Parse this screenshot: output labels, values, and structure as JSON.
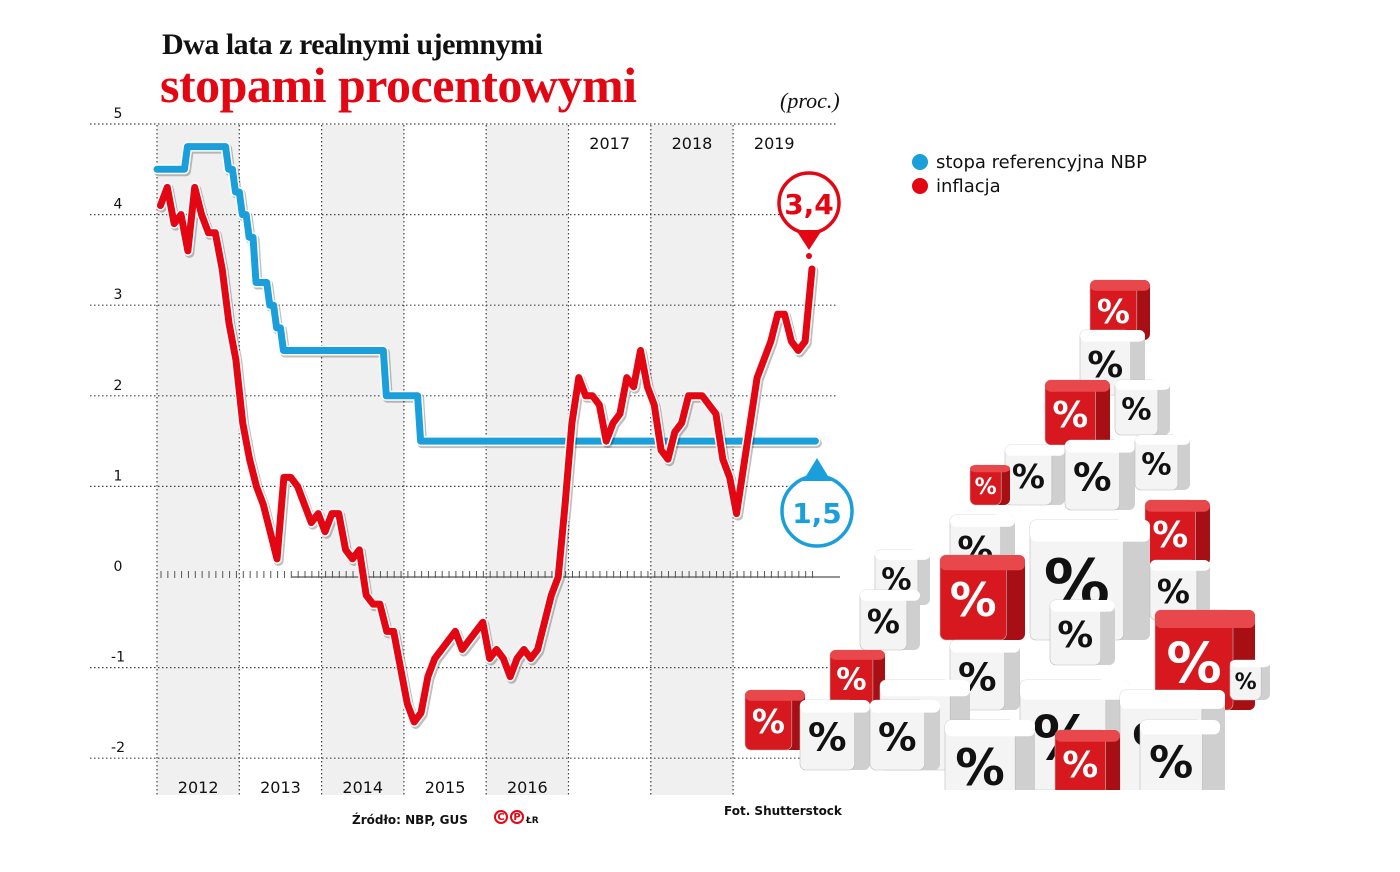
{
  "header": {
    "title_line1": "Dwa lata z realnymi ujemnymi",
    "title_line2": "stopami procentowymi",
    "unit": "(proc.)"
  },
  "legend": {
    "items": [
      {
        "label": "stopa referencyjna NBP",
        "color": "#1a9fdb"
      },
      {
        "label": "inflacja",
        "color": "#e30613"
      }
    ]
  },
  "callouts": {
    "inflation_last": "3,4",
    "rate_last": "1,5"
  },
  "footer": {
    "source": "Źródło: NBP, GUS",
    "logo": "CP",
    "author": "ŁR",
    "photo_credit": "Fot. Shutterstock"
  },
  "colors": {
    "red": "#e30613",
    "blue": "#1a9fdb",
    "shade": "#f0f0f0"
  },
  "chart_data": {
    "type": "line",
    "title": "Dwa lata z realnymi ujemnymi stopami procentowymi",
    "ylabel": "(proc.)",
    "xlabel": "",
    "ylim": [
      -2,
      5
    ],
    "yticks": [
      5,
      4,
      3,
      2,
      1,
      0,
      -1,
      -2
    ],
    "x_categories": [
      "2012",
      "2013",
      "2014",
      "2015",
      "2016",
      "2017",
      "2018",
      "2019"
    ],
    "x_label_positions": {
      "bottom": [
        "2012",
        "2013",
        "2014",
        "2015",
        "2016"
      ],
      "top": [
        "2017",
        "2018",
        "2019"
      ]
    },
    "frequency": "monthly, Jan 2012 - Dec 2019",
    "grid": true,
    "legend_position": "right",
    "annotations": [
      {
        "series": "inflacja",
        "text": "3,4",
        "at": "last point"
      },
      {
        "series": "stopa referencyjna NBP",
        "text": "1,5",
        "at": "last point"
      }
    ],
    "series": [
      {
        "name": "stopa referencyjna NBP",
        "color": "#1a9fdb",
        "values": [
          4.5,
          4.5,
          4.5,
          4.5,
          4.75,
          4.75,
          4.75,
          4.75,
          4.75,
          4.75,
          4.5,
          4.25,
          4.0,
          3.75,
          3.25,
          3.25,
          3.0,
          2.75,
          2.5,
          2.5,
          2.5,
          2.5,
          2.5,
          2.5,
          2.5,
          2.5,
          2.5,
          2.5,
          2.5,
          2.5,
          2.5,
          2.5,
          2.5,
          2.0,
          2.0,
          2.0,
          2.0,
          2.0,
          1.5,
          1.5,
          1.5,
          1.5,
          1.5,
          1.5,
          1.5,
          1.5,
          1.5,
          1.5,
          1.5,
          1.5,
          1.5,
          1.5,
          1.5,
          1.5,
          1.5,
          1.5,
          1.5,
          1.5,
          1.5,
          1.5,
          1.5,
          1.5,
          1.5,
          1.5,
          1.5,
          1.5,
          1.5,
          1.5,
          1.5,
          1.5,
          1.5,
          1.5,
          1.5,
          1.5,
          1.5,
          1.5,
          1.5,
          1.5,
          1.5,
          1.5,
          1.5,
          1.5,
          1.5,
          1.5,
          1.5,
          1.5,
          1.5,
          1.5,
          1.5,
          1.5,
          1.5,
          1.5,
          1.5,
          1.5,
          1.5,
          1.5
        ]
      },
      {
        "name": "inflacja",
        "color": "#e30613",
        "values": [
          4.1,
          4.3,
          3.9,
          4.0,
          3.6,
          4.3,
          4.0,
          3.8,
          3.8,
          3.4,
          2.8,
          2.4,
          1.7,
          1.3,
          1.0,
          0.8,
          0.5,
          0.2,
          1.1,
          1.1,
          1.0,
          0.8,
          0.6,
          0.7,
          0.5,
          0.7,
          0.7,
          0.3,
          0.2,
          0.3,
          -0.2,
          -0.3,
          -0.3,
          -0.6,
          -0.6,
          -1.0,
          -1.4,
          -1.6,
          -1.5,
          -1.1,
          -0.9,
          -0.8,
          -0.7,
          -0.6,
          -0.8,
          -0.7,
          -0.6,
          -0.5,
          -0.9,
          -0.8,
          -0.9,
          -1.1,
          -0.9,
          -0.8,
          -0.9,
          -0.8,
          -0.5,
          -0.2,
          0.0,
          0.8,
          1.7,
          2.2,
          2.0,
          2.0,
          1.9,
          1.5,
          1.7,
          1.8,
          2.2,
          2.1,
          2.5,
          2.1,
          1.9,
          1.4,
          1.3,
          1.6,
          1.7,
          2.0,
          2.0,
          2.0,
          1.9,
          1.8,
          1.3,
          1.1,
          0.7,
          1.2,
          1.7,
          2.2,
          2.4,
          2.6,
          2.9,
          2.9,
          2.6,
          2.5,
          2.6,
          3.4
        ]
      }
    ]
  }
}
